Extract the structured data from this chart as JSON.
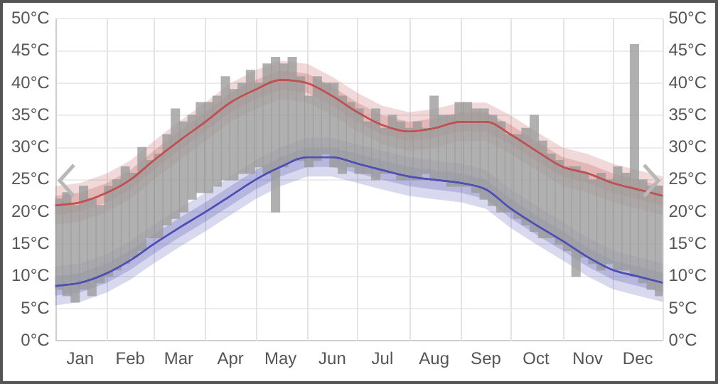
{
  "chart_data": {
    "type": "line",
    "xlim": [
      "--01-01",
      "--12-31"
    ],
    "xticks": [
      {
        "value": "--01-01",
        "label": null
      },
      {
        "value": "--01-16",
        "label": "Jan"
      },
      {
        "value": "--02-01",
        "label": null
      },
      {
        "value": "--02-15",
        "label": "Feb"
      },
      {
        "value": "--03-01",
        "label": null
      },
      {
        "value": "--03-16",
        "label": "Mar"
      },
      {
        "value": "--04-01",
        "label": null
      },
      {
        "value": "--04-16",
        "label": "Apr"
      },
      {
        "value": "--05-01",
        "label": null
      },
      {
        "value": "--05-16",
        "label": "May"
      },
      {
        "value": "--06-01",
        "label": null
      },
      {
        "value": "--06-16",
        "label": "Jun"
      },
      {
        "value": "--07-01",
        "label": null
      },
      {
        "value": "--07-16",
        "label": "Jul"
      },
      {
        "value": "--08-01",
        "label": null
      },
      {
        "value": "--08-16",
        "label": "Aug"
      },
      {
        "value": "--09-01",
        "label": null
      },
      {
        "value": "--09-16",
        "label": "Sep"
      },
      {
        "value": "--10-01",
        "label": null
      },
      {
        "value": "--10-16",
        "label": "Oct"
      },
      {
        "value": "--11-01",
        "label": null
      },
      {
        "value": "--11-16",
        "label": "Nov"
      },
      {
        "value": "--12-01",
        "label": null
      },
      {
        "value": "--12-16",
        "label": "Dec"
      },
      {
        "value": "--12-31",
        "label": null
      }
    ],
    "ylim": [
      0,
      50
    ],
    "yticks": [
      {
        "value": 0,
        "label": "0°C"
      },
      {
        "value": 5,
        "label": "5°C"
      },
      {
        "value": 10,
        "label": "10°C"
      },
      {
        "value": 15,
        "label": "15°C"
      },
      {
        "value": 20,
        "label": "20°C"
      },
      {
        "value": 25,
        "label": "25°C"
      },
      {
        "value": 30,
        "label": "30°C"
      },
      {
        "value": 35,
        "label": "35°C"
      },
      {
        "value": 40,
        "label": "40°C"
      },
      {
        "value": 45,
        "label": "45°C"
      },
      {
        "value": 50,
        "label": "50°C"
      }
    ],
    "y2lim": [
      0,
      50
    ],
    "y2ticks": [
      {
        "value": 0,
        "label": "0°C"
      },
      {
        "value": 5,
        "label": "5°C"
      },
      {
        "value": 10,
        "label": "10°C"
      },
      {
        "value": 15,
        "label": "15°C"
      },
      {
        "value": 20,
        "label": "20°C"
      },
      {
        "value": 25,
        "label": "25°C"
      },
      {
        "value": 30,
        "label": "30°C"
      },
      {
        "value": 35,
        "label": "35°C"
      },
      {
        "value": 40,
        "label": "40°C"
      },
      {
        "value": 45,
        "label": "45°C"
      },
      {
        "value": 50,
        "label": "50°C"
      }
    ],
    "grid": true,
    "x": [
      "--01-01",
      "--01-16",
      "--02-01",
      "--02-15",
      "--03-01",
      "--03-16",
      "--04-01",
      "--04-16",
      "--05-01",
      "--05-16",
      "--06-01",
      "--06-16",
      "--07-01",
      "--07-16",
      "--08-01",
      "--08-16",
      "--09-01",
      "--09-16",
      "--10-01",
      "--10-16",
      "--11-01",
      "--11-16",
      "--12-01",
      "--12-16",
      "--12-31"
    ],
    "series": [
      {
        "color": "#c25252",
        "values": [
          21,
          21.5,
          23,
          25,
          28,
          31,
          34,
          37,
          39,
          40.5,
          40,
          38,
          35.5,
          33.5,
          32.5,
          33,
          34,
          34,
          32,
          29.5,
          27,
          26,
          24.5,
          23.5,
          22.5
        ],
        "lower": [
          18,
          18.5,
          20,
          22,
          25,
          28,
          31,
          34,
          36,
          37.5,
          37,
          35,
          32.5,
          30.5,
          29.5,
          30,
          31,
          31,
          29,
          26.5,
          24,
          23,
          21.5,
          20.5,
          19.5
        ],
        "upper": [
          24,
          24.5,
          26,
          28,
          31,
          34,
          37,
          40,
          42,
          43.5,
          43,
          41,
          38.5,
          36.5,
          35.5,
          36,
          37,
          37,
          35,
          32.5,
          30,
          29,
          27.5,
          26.5,
          25.5
        ]
      },
      {
        "color": "#b04040",
        "values": [
          21,
          21.5,
          23,
          25,
          28,
          31,
          34,
          37,
          39,
          40.5,
          40,
          38,
          35.5,
          33.5,
          32.5,
          33,
          34,
          34,
          32,
          29.5,
          27,
          26,
          24.5,
          23.5,
          22.5
        ],
        "upper": [
          22.5,
          23,
          24.5,
          26.5,
          29.5,
          32.5,
          35.5,
          38.5,
          40.5,
          42,
          41.5,
          39.5,
          37,
          35,
          34,
          34.5,
          35.5,
          35.5,
          33.5,
          31,
          28.5,
          27.5,
          26,
          25,
          24
        ],
        "lower": [
          19.5,
          20,
          21.5,
          23.5,
          26.5,
          29.5,
          32.5,
          35.5,
          37.5,
          39,
          38.5,
          36.5,
          34,
          32,
          31,
          31.5,
          32.5,
          32.5,
          30.5,
          28,
          25.5,
          24.5,
          23,
          22,
          21
        ]
      },
      {
        "color": "#4f4fb8",
        "values": [
          8.5,
          9,
          10.5,
          12.5,
          15,
          17.5,
          20,
          22.5,
          25,
          27,
          28.5,
          28.5,
          27.5,
          26.5,
          25.5,
          25,
          24.5,
          23.5,
          20.5,
          18,
          15.5,
          13,
          11,
          10,
          9
        ],
        "lower": [
          5.5,
          6,
          7.5,
          9.5,
          12,
          14.5,
          17,
          19.5,
          22,
          24,
          25.5,
          25.5,
          24.5,
          23.5,
          22.5,
          22,
          21.5,
          20.5,
          17.5,
          15,
          12.5,
          10,
          8,
          7,
          6
        ],
        "upper": [
          11.5,
          12,
          13.5,
          15.5,
          18,
          20.5,
          23,
          25.5,
          28,
          30,
          31.5,
          31.5,
          30.5,
          29.5,
          28.5,
          28,
          27.5,
          26.5,
          23.5,
          21,
          18.5,
          16,
          14,
          13,
          12
        ]
      },
      {
        "color": "#3f3fa8",
        "values": [
          8.5,
          9,
          10.5,
          12.5,
          15,
          17.5,
          20,
          22.5,
          25,
          27,
          28.5,
          28.5,
          27.5,
          26.5,
          25.5,
          25,
          24.5,
          23.5,
          20.5,
          18,
          15.5,
          13,
          11,
          10,
          9
        ],
        "upper": [
          10,
          10.5,
          12,
          14,
          16.5,
          19,
          21.5,
          24,
          26.5,
          28.5,
          30,
          30,
          29,
          28,
          27,
          26.5,
          26,
          25,
          22,
          19.5,
          17,
          14.5,
          12.5,
          11.5,
          10.5
        ],
        "lower": [
          7,
          7.5,
          9,
          11,
          13.5,
          16,
          18.5,
          21,
          23.5,
          25.5,
          27,
          27,
          26,
          25,
          24,
          23.5,
          23,
          22,
          19,
          16.5,
          14,
          11.5,
          9.5,
          8.5,
          7.5
        ]
      },
      {
        "type": "bar",
        "color": "#9a9a9a",
        "x": [
          "--01-03",
          "--01-08",
          "--01-13",
          "--01-18",
          "--01-23",
          "--01-28",
          "--02-02",
          "--02-07",
          "--02-12",
          "--02-17",
          "--02-22",
          "--02-27",
          "--03-04",
          "--03-09",
          "--03-14",
          "--03-19",
          "--03-24",
          "--03-29",
          "--04-03",
          "--04-08",
          "--04-13",
          "--04-18",
          "--04-23",
          "--04-28",
          "--05-03",
          "--05-08",
          "--05-13",
          "--05-18",
          "--05-23",
          "--05-28",
          "--06-02",
          "--06-07",
          "--06-12",
          "--06-17",
          "--06-22",
          "--06-27",
          "--07-02",
          "--07-07",
          "--07-12",
          "--07-17",
          "--07-22",
          "--07-27",
          "--08-01",
          "--08-06",
          "--08-11",
          "--08-16",
          "--08-21",
          "--08-26",
          "--08-31",
          "--09-05",
          "--09-10",
          "--09-15",
          "--09-20",
          "--09-25",
          "--09-30",
          "--10-05",
          "--10-10",
          "--10-15",
          "--10-20",
          "--10-25",
          "--10-30",
          "--11-04",
          "--11-09",
          "--11-14",
          "--11-19",
          "--11-24",
          "--11-29",
          "--12-04",
          "--12-09",
          "--12-14",
          "--12-19",
          "--12-24",
          "--12-29"
        ],
        "base": [
          8,
          7,
          6,
          8,
          7,
          9,
          10,
          11,
          12,
          13,
          14,
          16,
          16,
          18,
          19,
          20,
          22,
          23,
          23,
          24,
          25,
          25,
          26,
          26,
          27,
          26,
          20,
          27,
          28,
          28,
          27,
          28,
          29,
          27,
          26,
          27,
          26,
          26,
          25,
          26,
          26,
          25,
          25,
          25,
          26,
          25,
          25,
          24,
          24,
          24,
          23,
          22,
          21,
          20,
          20,
          19,
          18,
          17,
          16,
          16,
          15,
          14,
          10,
          13,
          12,
          11,
          12,
          11,
          11,
          10,
          9,
          8,
          7
        ],
        "values": [
          14,
          16,
          15,
          16,
          15,
          12,
          14,
          14,
          15,
          13,
          16,
          12,
          13,
          14,
          17,
          14,
          13,
          14,
          14,
          14,
          16,
          14,
          14,
          16,
          13,
          17,
          24,
          16,
          16,
          13,
          11,
          13,
          11,
          13,
          12,
          10,
          10,
          8,
          11,
          7,
          9,
          9,
          8,
          9,
          7,
          13,
          10,
          11,
          13,
          13,
          13,
          14,
          14,
          14,
          12,
          13,
          15,
          18,
          15,
          13,
          13,
          13,
          17,
          13,
          13,
          15,
          13,
          16,
          15,
          36,
          16,
          16,
          17
        ]
      }
    ]
  }
}
